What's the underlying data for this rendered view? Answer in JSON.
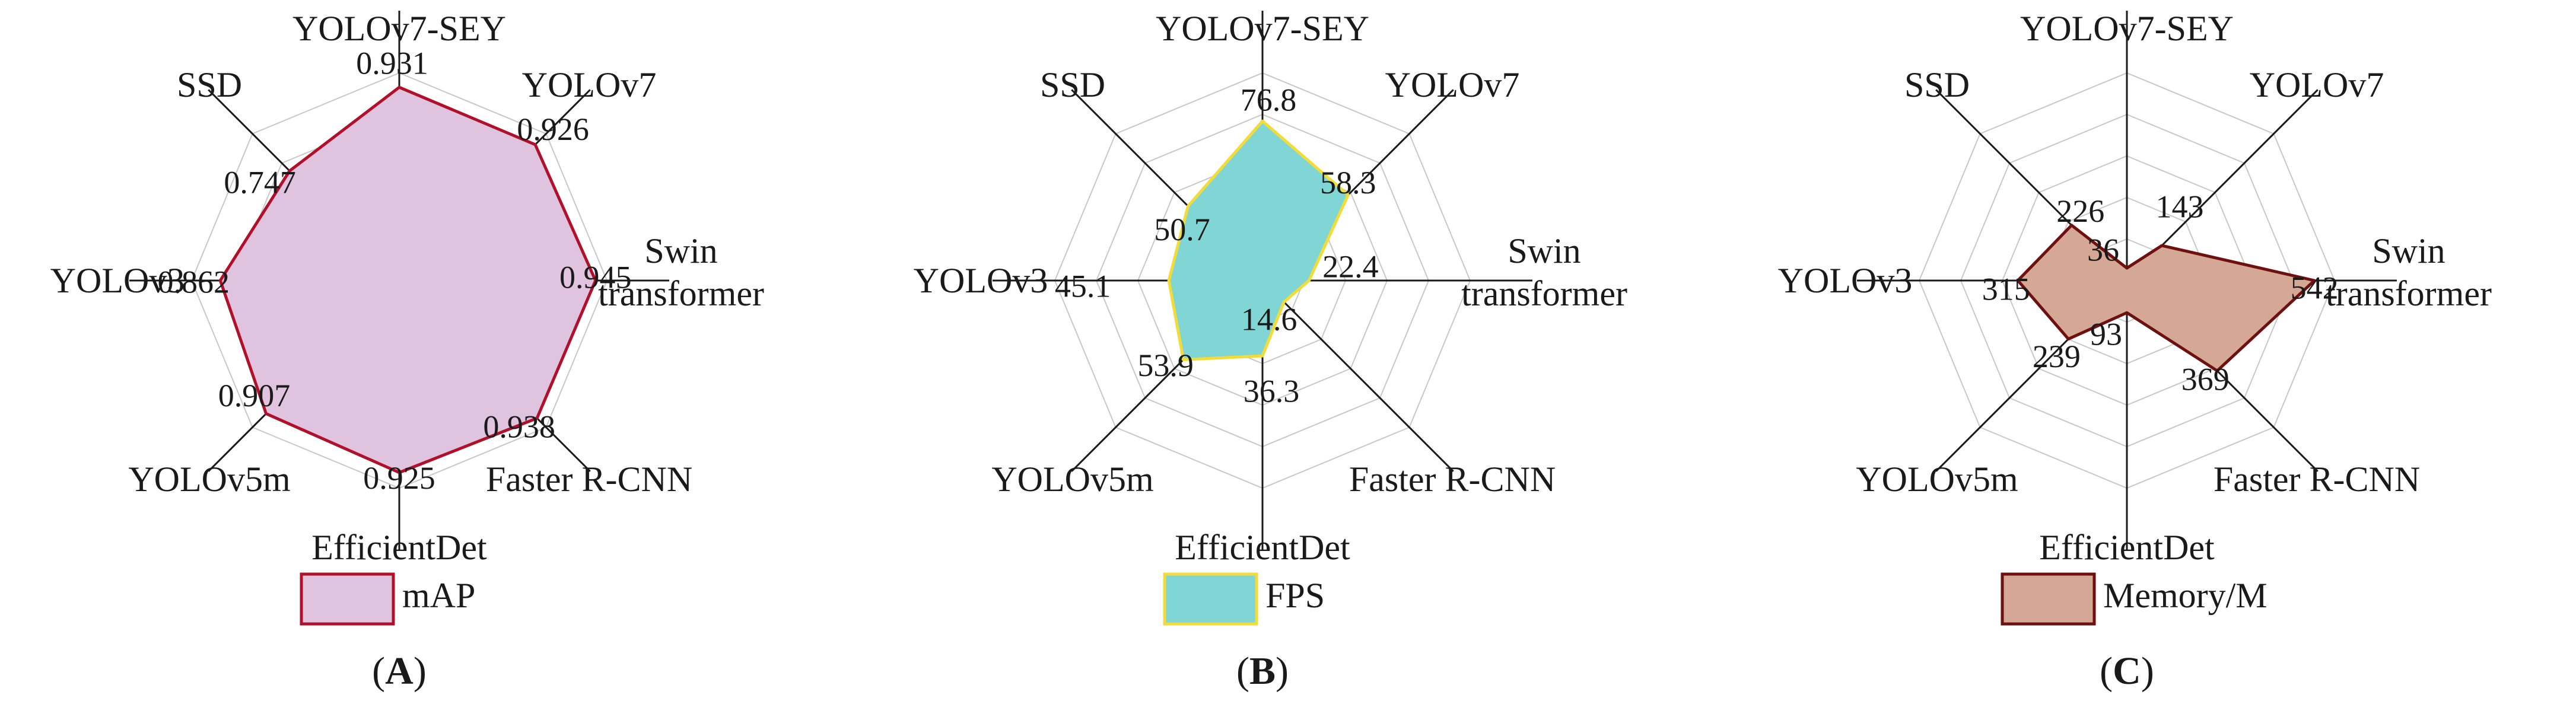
{
  "chart_data": [
    {
      "type": "radar",
      "panel_label": "A",
      "categories": [
        "YOLOv7-SEY",
        "YOLOv7",
        "Swin transformer",
        "Faster R-CNN",
        "EfficientDet",
        "YOLOv5m",
        "YOLOv3",
        "SSD"
      ],
      "axis_min": 0,
      "axis_max": 1.0,
      "rings": 5,
      "series": [
        {
          "name": "mAP",
          "values": [
            0.931,
            0.926,
            0.945,
            0.938,
            0.925,
            0.907,
            0.862,
            0.747
          ],
          "value_labels": [
            "0.931",
            "0.926",
            "0.945",
            "0.938",
            "0.925",
            "0.907",
            "0.862",
            "0.747"
          ],
          "fill": "#dfc3df",
          "stroke": "#b0102a"
        }
      ],
      "legend_position": "bottom"
    },
    {
      "type": "radar",
      "panel_label": "B",
      "categories": [
        "YOLOv7-SEY",
        "YOLOv7",
        "Swin transformer",
        "Faster R-CNN",
        "EfficientDet",
        "YOLOv5m",
        "YOLOv3",
        "SSD"
      ],
      "axis_min": 0,
      "axis_max": 100,
      "rings": 5,
      "series": [
        {
          "name": "FPS",
          "values": [
            76.8,
            58.3,
            22.4,
            14.6,
            36.3,
            53.9,
            45.1,
            50.7
          ],
          "value_labels": [
            "76.8",
            "58.3",
            "22.4",
            "14.6",
            "36.3",
            "53.9",
            "45.1",
            "50.7"
          ],
          "fill": "#7fd6d4",
          "stroke": "#f2dc3a"
        }
      ],
      "legend_position": "bottom"
    },
    {
      "type": "radar",
      "panel_label": "C",
      "categories": [
        "YOLOv7-SEY",
        "YOLOv7",
        "Swin transformer",
        "Faster R-CNN",
        "EfficientDet",
        "YOLOv5m",
        "YOLOv3",
        "SSD"
      ],
      "axis_min": 0,
      "axis_max": 600,
      "rings": 5,
      "series": [
        {
          "name": "Memory/M",
          "values": [
            36,
            143,
            542,
            369,
            93,
            239,
            315,
            226
          ],
          "value_labels": [
            "36",
            "143",
            "542",
            "369",
            "93",
            "239",
            "315",
            "226"
          ],
          "fill": "#d4a894",
          "stroke": "#6e1010"
        }
      ],
      "legend_position": "bottom"
    }
  ]
}
